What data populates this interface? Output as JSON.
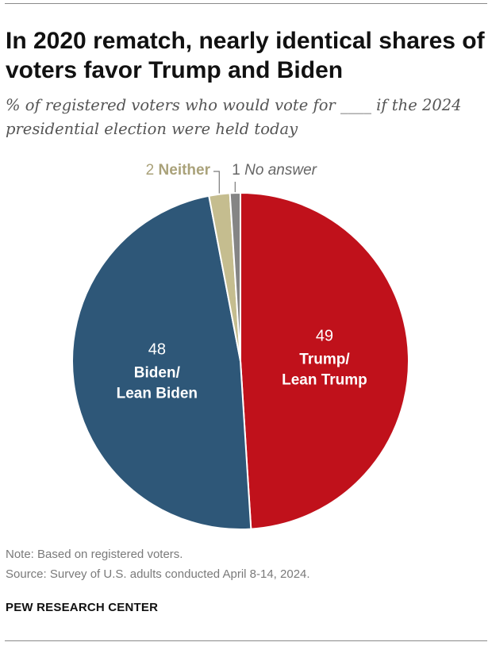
{
  "title": "In 2020 rematch, nearly identical shares of voters favor Trump and Biden",
  "subtitle": "% of registered voters who would vote for ____ if the 2024 presidential election were held today",
  "note": "Note: Based on registered voters.",
  "source": "Source: Survey of U.S. adults conducted April 8-14, 2024.",
  "brand": "PEW RESEARCH CENTER",
  "colors": {
    "trump": "#c0111b",
    "biden": "#2e5778",
    "neither": "#c5bd8f",
    "no_answer": "#858585"
  },
  "chart_data": {
    "type": "pie",
    "title": "In 2020 rematch, nearly identical shares of voters favor Trump and Biden",
    "unit": "%",
    "slices": [
      {
        "key": "trump",
        "value": 49,
        "value_label": "49",
        "label_lines": [
          "Trump/",
          "Lean Trump"
        ]
      },
      {
        "key": "biden",
        "value": 48,
        "value_label": "48",
        "label_lines": [
          "Biden/",
          "Lean Biden"
        ]
      },
      {
        "key": "neither",
        "value": 2,
        "value_label": "2",
        "label_lines": [
          "Neither"
        ]
      },
      {
        "key": "no_answer",
        "value": 1,
        "value_label": "1",
        "label_lines": [
          "No answer"
        ]
      }
    ]
  }
}
